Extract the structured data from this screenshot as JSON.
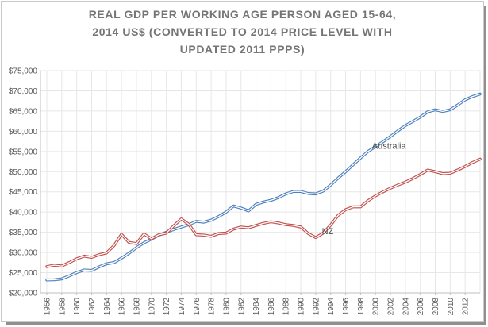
{
  "chart_data": {
    "type": "line",
    "title": "REAL GDP PER WORKING AGE PERSON AGED 15-64, 2014 US$ (CONVERTED TO 2014 PRICE LEVEL WITH UPDATED 2011 PPPS)",
    "title_lines": [
      "REAL GDP PER WORKING AGE PERSON AGED 15-64,",
      "2014 US$ (CONVERTED TO 2014 PRICE LEVEL WITH",
      "UPDATED 2011 PPPS)"
    ],
    "xlabel": "",
    "ylabel": "",
    "ylim": [
      20000,
      75000
    ],
    "ytick_step": 5000,
    "y_tick_labels": [
      "$20,000",
      "$25,000",
      "$30,000",
      "$35,000",
      "$40,000",
      "$45,000",
      "$50,000",
      "$55,000",
      "$60,000",
      "$65,000",
      "$70,000",
      "$75,000"
    ],
    "x_first_year": 1956,
    "x_last_year": 2014,
    "x_tick_labels": [
      "1956",
      "1958",
      "1960",
      "1962",
      "1964",
      "1966",
      "1968",
      "1970",
      "1972",
      "1974",
      "1976",
      "1978",
      "1980",
      "1982",
      "1984",
      "1986",
      "1988",
      "1990",
      "1992",
      "1994",
      "1996",
      "1998",
      "2000",
      "2002",
      "2004",
      "2006",
      "2008",
      "2010",
      "2012"
    ],
    "grid": true,
    "legend_position": "inline-labels",
    "background_color": "#ffffff",
    "gridline_color": "#e7e7e7",
    "title_color": "#757575",
    "series": [
      {
        "name": "Australia",
        "color": "#4f81bd",
        "values": [
          23200,
          23250,
          23450,
          24200,
          25050,
          25650,
          25550,
          26450,
          27200,
          27500,
          28600,
          29800,
          31200,
          32400,
          33300,
          34300,
          35000,
          35700,
          36300,
          36900,
          37700,
          37500,
          38000,
          38900,
          40000,
          41500,
          41000,
          40300,
          41900,
          42500,
          42900,
          43600,
          44500,
          45100,
          45100,
          44600,
          44500,
          45200,
          46700,
          48400,
          50000,
          51700,
          53400,
          55000,
          56200,
          57400,
          58700,
          60100,
          61400,
          62400,
          63500,
          64800,
          65300,
          64900,
          65300,
          66500,
          67800,
          68600,
          69200
        ]
      },
      {
        "name": "NZ",
        "color": "#c0504d",
        "values": [
          26500,
          26850,
          26650,
          27500,
          28450,
          29100,
          28800,
          29450,
          29900,
          31700,
          34500,
          32500,
          32200,
          34600,
          33400,
          34400,
          34800,
          36600,
          38300,
          37000,
          34400,
          34300,
          34000,
          34700,
          34800,
          35800,
          36300,
          36100,
          36700,
          37200,
          37600,
          37300,
          36900,
          36700,
          36300,
          34700,
          33700,
          34800,
          36800,
          39200,
          40600,
          41300,
          41300,
          42800,
          44000,
          45000,
          45900,
          46700,
          47400,
          48300,
          49300,
          50400,
          50000,
          49500,
          49600,
          50400,
          51300,
          52300,
          53100
        ]
      }
    ],
    "annotations": [
      {
        "text": "Australia",
        "x": 2001.8,
        "y": 56400
      },
      {
        "text": "NZ",
        "x": 1993.6,
        "y": 35300
      }
    ]
  }
}
